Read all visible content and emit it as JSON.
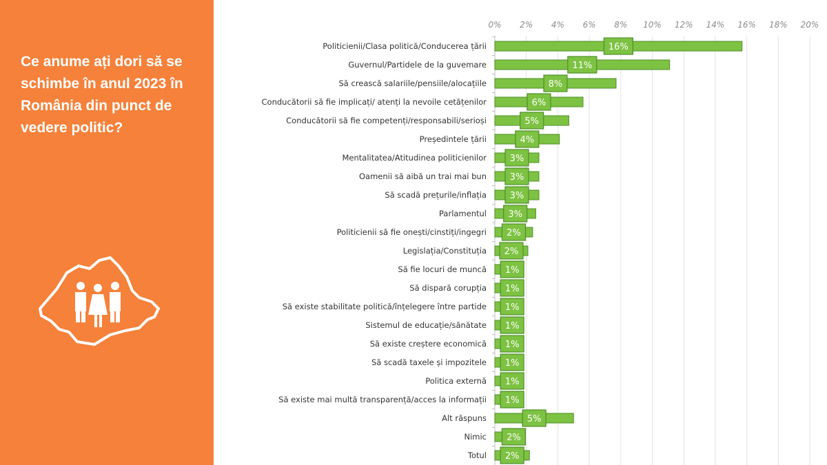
{
  "panel": {
    "title": "Ce anume ați dori să se schimbe în anul 2023 în România din punct de vedere politic?",
    "icon": "romania-map-people-icon",
    "background": "#F5813A"
  },
  "chart_data": {
    "type": "bar",
    "orientation": "horizontal",
    "title": "",
    "xlabel": "",
    "ylabel": "",
    "xlim": [
      0,
      20
    ],
    "ticks": [
      "0%",
      "2%",
      "4%",
      "6%",
      "8%",
      "10%",
      "12%",
      "14%",
      "16%",
      "18%",
      "20%"
    ],
    "tick_values": [
      0,
      2,
      4,
      6,
      8,
      10,
      12,
      14,
      16,
      18,
      20
    ],
    "axis_position": "top",
    "grid": true,
    "bar_color": "#7DC242",
    "categories": [
      "Politicienii/Clasa politică/Conducerea țării",
      "Guvernul/Partidele de la guvemare",
      "Să crească salariile/pensiile/alocațiile",
      "Conducătorii să fie implicați/  atenți la nevoile cetățenilor",
      "Conducătorii să fie competenți/responsabili/serioși",
      "Președintele țării",
      "Mentalitatea/Atitudinea politicienilor",
      "Oamenii să aibă un trai mai bun",
      "Să scadă prețurile/inflația",
      "Parlamentul",
      "Politicienii să fie onești/cinstiți/ingegri",
      "Legislația/Constituția",
      "Să fie locuri de muncă",
      "Să dispară corupția",
      "Să existe stabilitate politică/înțelegere între partide",
      "Sistemul de educație/sănătate",
      "Să existe creștere economică",
      "Să scadă taxele și impozitele",
      "Politica externă",
      "Să existe mai multă transparență/acces la informații",
      "Alt răspuns",
      "Nimic",
      "Totul"
    ],
    "values": [
      15.7,
      11.1,
      7.7,
      5.6,
      4.7,
      4.1,
      2.8,
      2.8,
      2.8,
      2.6,
      2.4,
      2.1,
      1.5,
      1.5,
      1.5,
      1.5,
      1.5,
      1.5,
      1.5,
      1.5,
      5.0,
      1.7,
      2.2
    ],
    "labels": [
      "16%",
      "11%",
      "8%",
      "6%",
      "5%",
      "4%",
      "3%",
      "3%",
      "3%",
      "3%",
      "2%",
      "2%",
      "1%",
      "1%",
      "1%",
      "1%",
      "1%",
      "1%",
      "1%",
      "1%",
      "5%",
      "2%",
      "2%"
    ]
  }
}
